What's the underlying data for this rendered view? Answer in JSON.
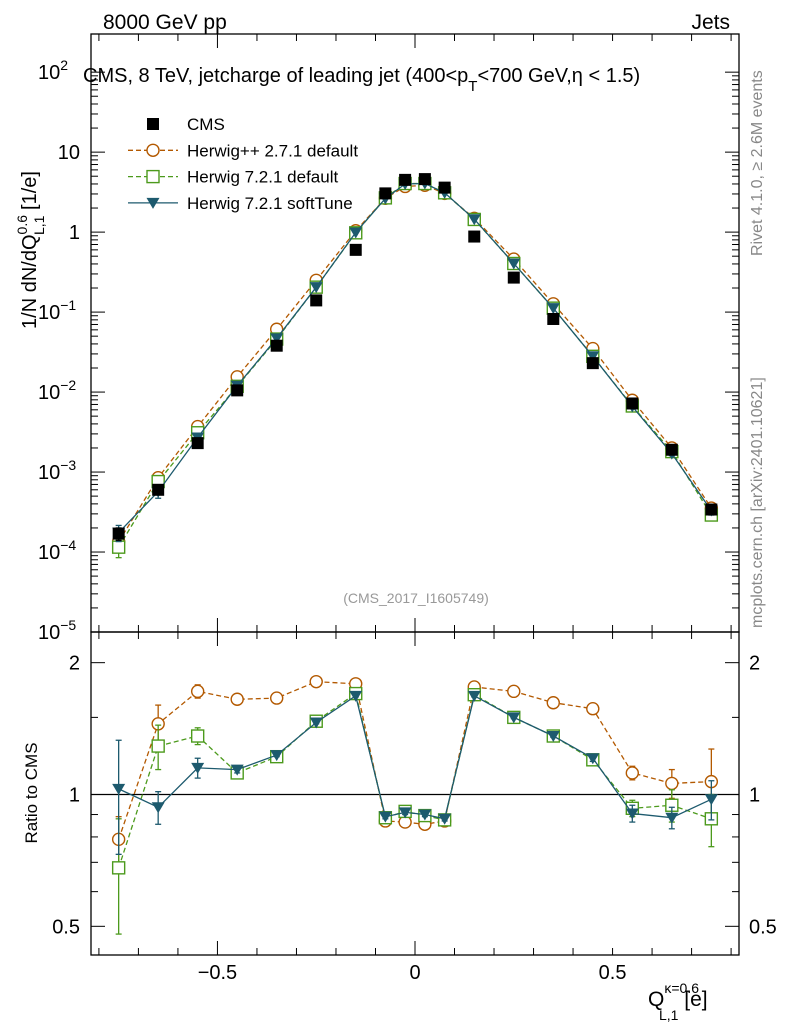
{
  "header": {
    "left": "8000 GeV pp",
    "right": "Jets"
  },
  "side_labels": {
    "rivet": "Rivet 4.1.0, ≥ 2.6M events",
    "mcplots": "mcplots.cern.ch [arXiv:2401.10621]"
  },
  "analysis_tag": "(CMS_2017_I1605749)",
  "colors": {
    "cms": "#000000",
    "herwigpp": "#b35900",
    "herwig721": "#4c9a1c",
    "softtune": "#1d5a6e"
  },
  "chart_data": [
    {
      "type": "scatter",
      "panel": "main",
      "title": "CMS, 8 TeV, jetcharge of leading jet (400<p",
      "title_sub": "T",
      "title_end": "<700 GeV,η < 1.5)",
      "ylabel_text": "1/N dN/dQ",
      "ylabel_sup": "0.6",
      "ylabel_sub": "L,1",
      "ylabel_unit": " [1/e]",
      "yscale": "log",
      "ylim": [
        1e-05,
        300
      ],
      "xlim": [
        -0.82,
        0.82
      ],
      "yticks": [
        {
          "v": 1e-05,
          "base": "10",
          "exp": "−5"
        },
        {
          "v": 0.0001,
          "base": "10",
          "exp": "−4"
        },
        {
          "v": 0.001,
          "base": "10",
          "exp": "−3"
        },
        {
          "v": 0.01,
          "base": "10",
          "exp": "−2"
        },
        {
          "v": 0.1,
          "base": "10",
          "exp": "−1"
        },
        {
          "v": 1,
          "base": "1",
          "exp": ""
        },
        {
          "v": 10,
          "base": "10",
          "exp": ""
        },
        {
          "v": 100,
          "base": "10",
          "exp": "2"
        }
      ],
      "x": [
        -0.75,
        -0.65,
        -0.55,
        -0.45,
        -0.35,
        -0.25,
        -0.15,
        -0.075,
        -0.025,
        0.025,
        0.075,
        0.15,
        0.25,
        0.35,
        0.45,
        0.55,
        0.65,
        0.75
      ],
      "series": [
        {
          "name": "CMS",
          "key": "cms",
          "marker": "square-filled",
          "line": "none",
          "values": [
            0.00017,
            0.0006,
            0.0023,
            0.0105,
            0.038,
            0.14,
            0.6,
            3.05,
            4.5,
            4.6,
            3.6,
            0.88,
            0.27,
            0.082,
            0.023,
            0.0072,
            0.0019,
            0.00034
          ],
          "err": [
            3e-05,
            5e-05,
            0.0001,
            0.0003,
            0.001,
            0.003,
            0.01,
            0.05,
            0.05,
            0.05,
            0.05,
            0.01,
            0.003,
            0.001,
            0.0005,
            0.0002,
            0.0001,
            4e-05
          ]
        },
        {
          "name": "Herwig++ 2.7.1 default",
          "key": "herwigpp",
          "marker": "circle-open",
          "line": "dashed",
          "values": [
            0.000135,
            0.00085,
            0.0037,
            0.0155,
            0.061,
            0.25,
            1.04,
            2.65,
            3.72,
            3.85,
            3.05,
            1.49,
            0.46,
            0.127,
            0.035,
            0.0079,
            0.002,
            0.000355
          ],
          "err": [
            2e-05,
            8e-05,
            0.0002,
            0.0005,
            0.001,
            0.003,
            0.01,
            0.02,
            0.02,
            0.02,
            0.02,
            0.01,
            0.005,
            0.002,
            0.001,
            0.0003,
            0.0001,
            4e-05
          ]
        },
        {
          "name": "Herwig 7.2.1 default",
          "key": "herwig721",
          "marker": "square-open",
          "line": "dashed",
          "values": [
            0.000115,
            0.00076,
            0.0031,
            0.0118,
            0.046,
            0.205,
            0.98,
            2.68,
            4.05,
            4.05,
            3.1,
            1.44,
            0.405,
            0.112,
            0.028,
            0.0067,
            0.0018,
            0.00029
          ],
          "err": [
            3e-05,
            0.0001,
            0.0002,
            0.0005,
            0.001,
            0.003,
            0.01,
            0.02,
            0.02,
            0.02,
            0.02,
            0.01,
            0.005,
            0.002,
            0.001,
            0.0003,
            0.0001,
            4e-05
          ]
        },
        {
          "name": "Herwig 7.2.1 softTune",
          "key": "softtune",
          "marker": "triangle-down-filled",
          "line": "solid",
          "values": [
            0.000175,
            0.00057,
            0.0027,
            0.012,
            0.047,
            0.205,
            0.99,
            2.63,
            4.0,
            4.05,
            3.1,
            1.45,
            0.405,
            0.112,
            0.028,
            0.0066,
            0.0017,
            0.00033
          ],
          "err": [
            4e-05,
            0.0001,
            0.0002,
            0.0005,
            0.001,
            0.003,
            0.01,
            0.02,
            0.02,
            0.02,
            0.02,
            0.01,
            0.005,
            0.002,
            0.001,
            0.0003,
            0.0001,
            4e-05
          ]
        }
      ]
    },
    {
      "type": "line",
      "panel": "ratio",
      "ylabel": "Ratio to CMS",
      "xlabel_text": "Q",
      "xlabel_sup": "κ=0.6",
      "xlabel_sub": "L,1",
      "xlabel_unit": " [e]",
      "yscale": "log",
      "ylim": [
        0.43,
        2.35
      ],
      "xlim": [
        -0.82,
        0.82
      ],
      "yticks": [
        {
          "v": 0.5,
          "label": "0.5"
        },
        {
          "v": 1,
          "label": "1"
        },
        {
          "v": 2,
          "label": "2"
        }
      ],
      "xticks": [
        {
          "v": -0.5,
          "label": "−0.5"
        },
        {
          "v": 0,
          "label": "0"
        },
        {
          "v": 0.5,
          "label": "0.5"
        }
      ],
      "reference": 1,
      "x": [
        -0.75,
        -0.65,
        -0.55,
        -0.45,
        -0.35,
        -0.25,
        -0.15,
        -0.075,
        -0.025,
        0.025,
        0.075,
        0.15,
        0.25,
        0.35,
        0.45,
        0.55,
        0.65,
        0.75
      ],
      "series": [
        {
          "name": "Herwig++ 2.7.1 default",
          "key": "herwigpp",
          "marker": "circle-open",
          "line": "dashed",
          "values": [
            0.79,
            1.45,
            1.72,
            1.65,
            1.66,
            1.81,
            1.79,
            0.87,
            0.865,
            0.855,
            0.87,
            1.76,
            1.72,
            1.62,
            1.57,
            1.12,
            1.06,
            1.07
          ],
          "err": [
            0.1,
            0.15,
            0.06,
            0.02,
            0.01,
            0.01,
            0.01,
            0.01,
            0.01,
            0.01,
            0.01,
            0.01,
            0.01,
            0.01,
            0.02,
            0.04,
            0.08,
            0.2
          ]
        },
        {
          "name": "Herwig 7.2.1 default",
          "key": "herwig721",
          "marker": "square-open",
          "line": "dashed",
          "values": [
            0.68,
            1.29,
            1.36,
            1.12,
            1.22,
            1.47,
            1.7,
            0.885,
            0.915,
            0.895,
            0.875,
            1.69,
            1.5,
            1.36,
            1.2,
            0.93,
            0.945,
            0.88
          ],
          "err": [
            0.2,
            0.15,
            0.06,
            0.02,
            0.01,
            0.01,
            0.01,
            0.01,
            0.01,
            0.01,
            0.01,
            0.01,
            0.01,
            0.01,
            0.02,
            0.04,
            0.08,
            0.12
          ]
        },
        {
          "name": "Herwig 7.2.1 softTune",
          "key": "softtune",
          "marker": "triangle-down-filled",
          "line": "solid",
          "values": [
            1.03,
            0.935,
            1.15,
            1.14,
            1.23,
            1.46,
            1.68,
            0.89,
            0.91,
            0.9,
            0.88,
            1.68,
            1.5,
            1.36,
            1.21,
            0.905,
            0.885,
            0.975
          ],
          "err": [
            0.3,
            0.08,
            0.06,
            0.02,
            0.01,
            0.01,
            0.01,
            0.01,
            0.01,
            0.01,
            0.01,
            0.01,
            0.01,
            0.01,
            0.02,
            0.04,
            0.05,
            0.1
          ]
        }
      ]
    }
  ]
}
